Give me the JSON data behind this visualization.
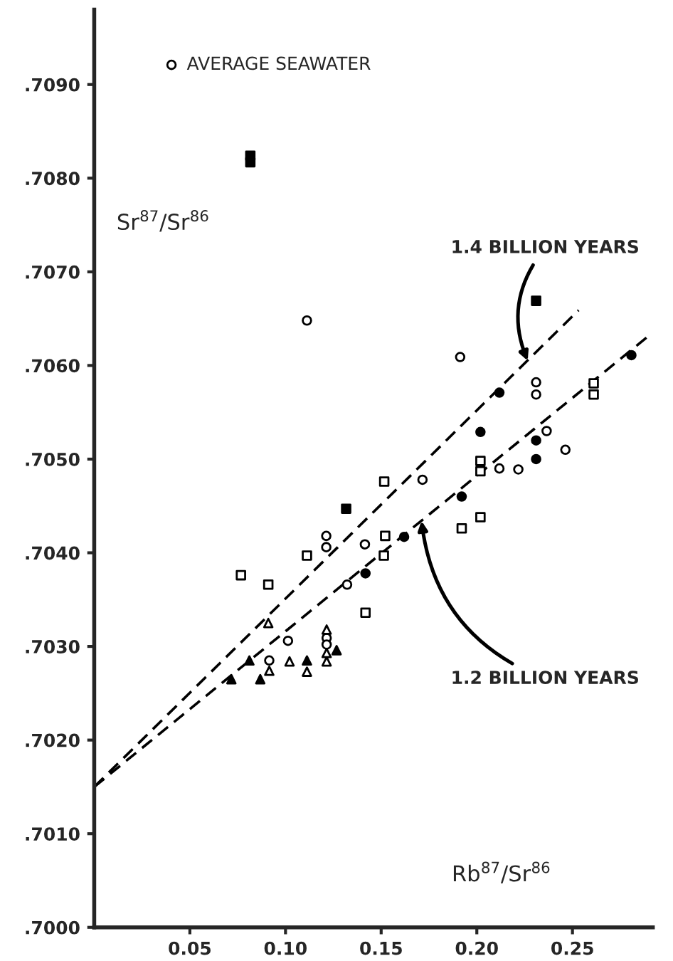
{
  "chart_data": {
    "type": "scatter",
    "xlabel": "Rb$^{87}$/Sr$^{86}$",
    "ylabel": "Sr$^{87}$/Sr$^{86}$",
    "xlim": [
      0,
      0.292
    ],
    "ylim": [
      0.7,
      0.7098
    ],
    "xticks": [
      {
        "value": 0.05,
        "label": "0.05"
      },
      {
        "value": 0.1,
        "label": "0.10"
      },
      {
        "value": 0.15,
        "label": "0.15"
      },
      {
        "value": 0.2,
        "label": "0.20"
      },
      {
        "value": 0.25,
        "label": "0.25"
      }
    ],
    "yticks": [
      {
        "value": 0.7,
        "label": ".7000"
      },
      {
        "value": 0.701,
        "label": ".7010"
      },
      {
        "value": 0.702,
        "label": ".7020"
      },
      {
        "value": 0.703,
        "label": ".7030"
      },
      {
        "value": 0.704,
        "label": ".7040"
      },
      {
        "value": 0.705,
        "label": ".7050"
      },
      {
        "value": 0.706,
        "label": ".7060"
      },
      {
        "value": 0.707,
        "label": ".7070"
      },
      {
        "value": 0.708,
        "label": ".7080"
      },
      {
        "value": 0.709,
        "label": ".7090"
      }
    ],
    "grid": false,
    "legend": false,
    "series": [
      {
        "name": "AVERAGE SEAWATER",
        "color": "#ffffff",
        "marker": "circle",
        "x": [
          0.0404
        ],
        "values": [
          0.70921
        ]
      },
      {
        "color": "#ffffff",
        "marker": "square",
        "x": [
          0.2611,
          0.2611,
          0.2019,
          0.2019,
          0.1516,
          0.1521,
          0.1514,
          0.1112,
          0.1921,
          0.2019,
          0.1418,
          0.091,
          0.0767
        ],
        "values": [
          0.70581,
          0.70569,
          0.70498,
          0.70487,
          0.70476,
          0.70418,
          0.70397,
          0.70397,
          0.70426,
          0.70438,
          0.70336,
          0.70366,
          0.70376
        ]
      },
      {
        "color": "#000000",
        "marker": "square",
        "x": [
          0.0816,
          0.0816,
          0.231,
          0.1317
        ],
        "values": [
          0.70824,
          0.70817,
          0.70669,
          0.70447
        ]
      },
      {
        "color": "#ffffff",
        "marker": "circle",
        "x": [
          0.1112,
          0.1913,
          0.231,
          0.231,
          0.2365,
          0.2463,
          0.2118,
          0.2217,
          0.1716,
          0.1213,
          0.1213,
          0.1415,
          0.1322,
          0.1013,
          0.1215,
          0.1215,
          0.0915
        ],
        "values": [
          0.70648,
          0.70609,
          0.70582,
          0.70569,
          0.7053,
          0.7051,
          0.7049,
          0.70489,
          0.70478,
          0.70418,
          0.70406,
          0.70409,
          0.70366,
          0.70306,
          0.70309,
          0.70302,
          0.70285
        ]
      },
      {
        "color": "#000000",
        "marker": "circle",
        "x": [
          0.2808,
          0.2118,
          0.2019,
          0.231,
          0.231,
          0.1921,
          0.162,
          0.1418
        ],
        "values": [
          0.70611,
          0.70571,
          0.70529,
          0.7052,
          0.705,
          0.7046,
          0.70417,
          0.70378
        ]
      },
      {
        "color": "#ffffff",
        "marker": "triangle",
        "x": [
          0.091,
          0.1215,
          0.1215,
          0.1215,
          0.0915,
          0.1021,
          0.1112
        ],
        "values": [
          0.70325,
          0.70318,
          0.70293,
          0.70284,
          0.70274,
          0.70284,
          0.70273
        ]
      },
      {
        "color": "#000000",
        "marker": "triangle",
        "x": [
          0.1267,
          0.0811,
          0.1112,
          0.0717,
          0.0868
        ],
        "values": [
          0.70296,
          0.70285,
          0.70285,
          0.70265,
          0.70265
        ]
      },
      {
        "type": "line",
        "line_style": "dashed",
        "marker": "none",
        "color": "#000000",
        "x": [
          0,
          0.2532
        ],
        "values": [
          0.7015,
          0.70659
        ]
      },
      {
        "type": "line",
        "line_style": "dashed",
        "marker": "none",
        "color": "#000000",
        "x": [
          0,
          0.2907
        ],
        "values": [
          0.7015,
          0.70633
        ]
      }
    ],
    "annotations": [
      {
        "text": "1.4 BILLION YEARS",
        "x": 0.2266,
        "y": 0.70605
      },
      {
        "text": "1.2 BILLION YEARS",
        "x": 0.1711,
        "y": 0.70434
      }
    ]
  }
}
